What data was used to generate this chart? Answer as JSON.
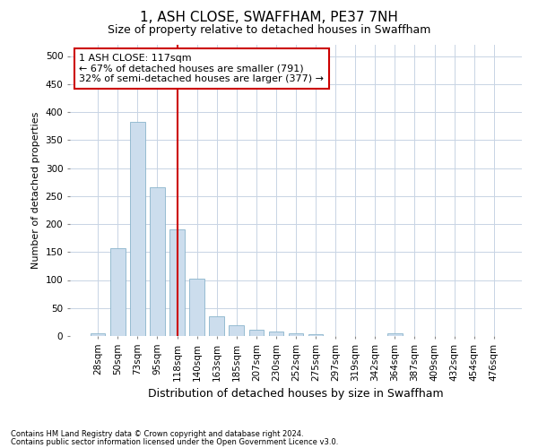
{
  "title": "1, ASH CLOSE, SWAFFHAM, PE37 7NH",
  "subtitle": "Size of property relative to detached houses in Swaffham",
  "xlabel": "Distribution of detached houses by size in Swaffham",
  "ylabel": "Number of detached properties",
  "categories": [
    "28sqm",
    "50sqm",
    "73sqm",
    "95sqm",
    "118sqm",
    "140sqm",
    "163sqm",
    "185sqm",
    "207sqm",
    "230sqm",
    "252sqm",
    "275sqm",
    "297sqm",
    "319sqm",
    "342sqm",
    "364sqm",
    "387sqm",
    "409sqm",
    "432sqm",
    "454sqm",
    "476sqm"
  ],
  "values": [
    5,
    157,
    383,
    265,
    190,
    102,
    35,
    20,
    11,
    8,
    5,
    3,
    0,
    0,
    0,
    5,
    0,
    0,
    0,
    0,
    0
  ],
  "bar_color": "#ccdded",
  "bar_edge_color": "#8ab4cc",
  "property_line_x": 4.0,
  "property_line_color": "#cc0000",
  "annotation_text": "1 ASH CLOSE: 117sqm\n← 67% of detached houses are smaller (791)\n32% of semi-detached houses are larger (377) →",
  "annotation_box_color": "#ffffff",
  "annotation_box_edge_color": "#cc0000",
  "ylim": [
    0,
    520
  ],
  "yticks": [
    0,
    50,
    100,
    150,
    200,
    250,
    300,
    350,
    400,
    450,
    500
  ],
  "footnote1": "Contains HM Land Registry data © Crown copyright and database right 2024.",
  "footnote2": "Contains public sector information licensed under the Open Government Licence v3.0.",
  "background_color": "#ffffff",
  "grid_color": "#c8d4e4",
  "title_fontsize": 11,
  "subtitle_fontsize": 9,
  "tick_fontsize": 7.5,
  "ylabel_fontsize": 8,
  "xlabel_fontsize": 9
}
